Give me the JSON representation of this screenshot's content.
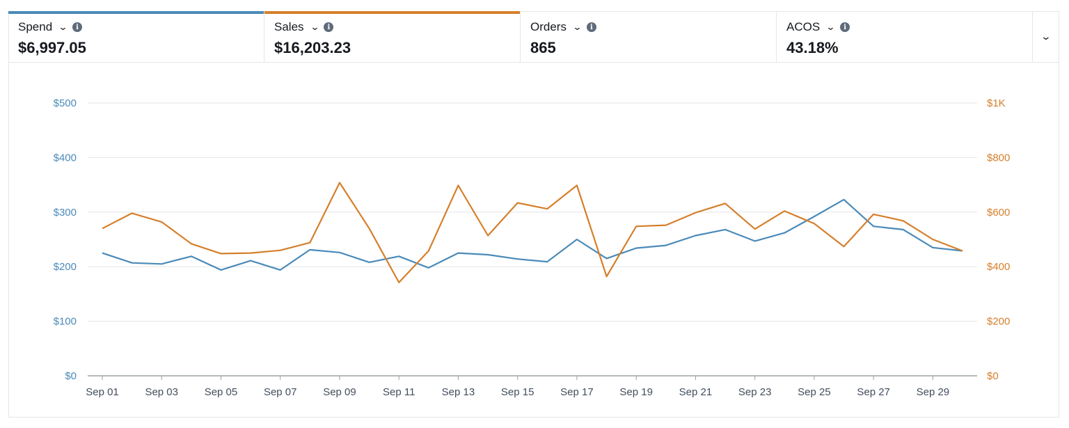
{
  "metrics": [
    {
      "label": "Spend",
      "value": "$6,997.05",
      "selected": true,
      "color": "#4a8ab8"
    },
    {
      "label": "Sales",
      "value": "$16,203.23",
      "selected": true,
      "color": "#d57f2b"
    },
    {
      "label": "Orders",
      "value": "865",
      "selected": false,
      "color": ""
    },
    {
      "label": "ACOS",
      "value": "43.18%",
      "selected": false,
      "color": ""
    }
  ],
  "icons": {
    "dropdown": "chevron-down-icon",
    "info": "info-icon",
    "expand": "chevron-down-icon"
  },
  "chart_data": {
    "type": "line",
    "x": [
      "Sep 01",
      "Sep 02",
      "Sep 03",
      "Sep 04",
      "Sep 05",
      "Sep 06",
      "Sep 07",
      "Sep 08",
      "Sep 09",
      "Sep 10",
      "Sep 11",
      "Sep 12",
      "Sep 13",
      "Sep 14",
      "Sep 15",
      "Sep 16",
      "Sep 17",
      "Sep 18",
      "Sep 19",
      "Sep 20",
      "Sep 21",
      "Sep 22",
      "Sep 23",
      "Sep 24",
      "Sep 25",
      "Sep 26",
      "Sep 27",
      "Sep 28",
      "Sep 29",
      "Sep 30"
    ],
    "xtick_labels": [
      "Sep 01",
      "Sep 03",
      "Sep 05",
      "Sep 07",
      "Sep 09",
      "Sep 11",
      "Sep 13",
      "Sep 15",
      "Sep 17",
      "Sep 19",
      "Sep 21",
      "Sep 23",
      "Sep 25",
      "Sep 27",
      "Sep 29"
    ],
    "series": [
      {
        "name": "Spend",
        "axis": "left",
        "color": "#4a8ab8",
        "values": [
          225,
          207,
          205,
          219,
          194,
          211,
          194,
          231,
          226,
          208,
          219,
          198,
          225,
          222,
          214,
          209,
          250,
          215,
          234,
          239,
          257,
          268,
          247,
          262,
          292,
          323,
          274,
          268,
          235,
          229
        ]
      },
      {
        "name": "Sales",
        "axis": "right",
        "color": "#d57f2b",
        "values": [
          540,
          596,
          564,
          484,
          448,
          450,
          460,
          488,
          708,
          540,
          342,
          458,
          698,
          514,
          634,
          612,
          698,
          364,
          548,
          552,
          598,
          632,
          538,
          604,
          558,
          474,
          592,
          568,
          500,
          458
        ]
      }
    ],
    "y_left": {
      "ticks": [
        "$0",
        "$100",
        "$200",
        "$300",
        "$400",
        "$500"
      ],
      "tick_values": [
        0,
        100,
        200,
        300,
        400,
        500
      ],
      "ylim": [
        0,
        500
      ],
      "color": "#4a8ab8"
    },
    "y_right": {
      "ticks": [
        "$0",
        "$200",
        "$400",
        "$600",
        "$800",
        "$1K"
      ],
      "tick_values": [
        0,
        200,
        400,
        600,
        800,
        1000
      ],
      "ylim": [
        0,
        1000
      ],
      "color": "#d57f2b"
    },
    "grid": true
  }
}
